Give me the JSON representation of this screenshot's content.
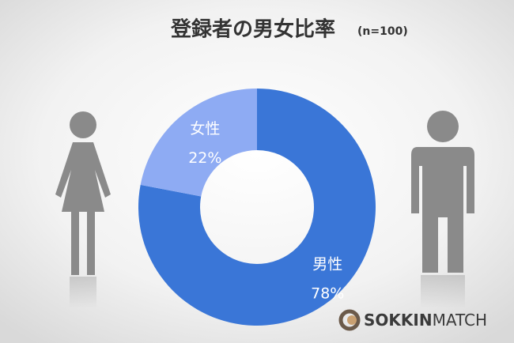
{
  "chart_data": {
    "type": "donut",
    "title": "登録者の男女比率",
    "subtitle": "(n=100)",
    "categories": [
      "男性",
      "女性"
    ],
    "values": [
      78,
      22
    ],
    "value_labels": [
      "78%",
      "22%"
    ],
    "colors": [
      "#3a76d7",
      "#8eabf3"
    ]
  },
  "logo": {
    "bold": "SOKKIN",
    "light": "MATCH"
  }
}
